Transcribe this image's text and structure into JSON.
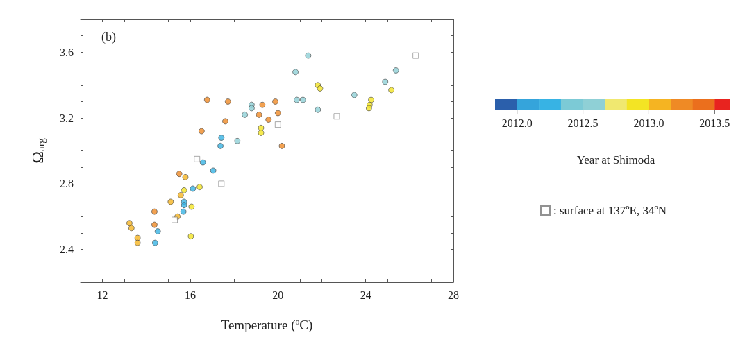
{
  "chart_data": {
    "type": "scatter",
    "xlabel": "Temperature (ºC)",
    "ylabel": "Ω$_{arg}$",
    "clabel": "Year at Shimoda",
    "annotations": [
      "(b)"
    ],
    "xlim": [
      11,
      28
    ],
    "ylim": [
      2.2,
      3.8
    ],
    "xticks": [
      {
        "value": 11,
        "label": null
      },
      12,
      {
        "value": 13,
        "label": null
      },
      {
        "value": 14,
        "label": null
      },
      {
        "value": 15,
        "label": null
      },
      16,
      {
        "value": 17,
        "label": null
      },
      {
        "value": 18,
        "label": null
      },
      {
        "value": 19,
        "label": null
      },
      20,
      {
        "value": 21,
        "label": null
      },
      {
        "value": 22,
        "label": null
      },
      {
        "value": 23,
        "label": null
      },
      24,
      {
        "value": 25,
        "label": null
      },
      {
        "value": 26,
        "label": null
      },
      {
        "value": 27,
        "label": null
      },
      28
    ],
    "yticks": [
      {
        "value": 2.2,
        "label": null
      },
      {
        "value": 2.3,
        "label": null
      },
      2.4,
      {
        "value": 2.5,
        "label": null
      },
      {
        "value": 2.6,
        "label": null
      },
      {
        "value": 2.7,
        "label": null
      },
      2.8,
      {
        "value": 2.9,
        "label": null
      },
      {
        "value": 3.0,
        "label": null
      },
      {
        "value": 3.1,
        "label": null
      },
      3.2,
      {
        "value": 3.3,
        "label": null
      },
      {
        "value": 3.4,
        "label": null
      },
      {
        "value": 3.5,
        "label": null
      },
      3.6,
      {
        "value": 3.7,
        "label": null
      },
      {
        "value": 3.8,
        "label": null
      }
    ],
    "clim": [
      2011.833,
      2013.667
    ],
    "cticks": [
      {
        "value": 2012,
        "label": "2012.0"
      },
      {
        "value": 2012.5,
        "label": "2012.5"
      },
      {
        "value": 2013,
        "label": "2013.0"
      },
      {
        "value": 2013.5,
        "label": "2013.5"
      }
    ],
    "grid": false,
    "legend": "right",
    "marker": "circle",
    "series": [
      {
        "x": [
          16.77,
          17.72,
          17.6,
          16.52,
          19.29,
          19.88,
          20.0,
          19.14,
          19.57,
          20.18,
          15.5,
          14.37,
          14.37
        ],
        "values": [
          3.31,
          3.3,
          3.18,
          3.12,
          3.28,
          3.3,
          3.23,
          3.22,
          3.19,
          3.03,
          2.86,
          2.63,
          2.55
        ],
        "cvalues": [
          2013.3,
          2013.3,
          2013.3,
          2013.3,
          2013.3,
          2013.3,
          2013.3,
          2013.3,
          2013.3,
          2013.3,
          2013.3,
          2013.3,
          2013.3
        ]
      },
      {
        "x": [
          15.78,
          15.57,
          15.11,
          15.42,
          13.23,
          13.32,
          13.6,
          13.6
        ],
        "values": [
          2.84,
          2.73,
          2.69,
          2.6,
          2.56,
          2.53,
          2.47,
          2.44
        ],
        "cvalues": [
          2013.1,
          2013.1,
          2013.1,
          2013.1,
          2013.1,
          2013.1,
          2013.1,
          2013.1
        ]
      },
      {
        "x": [
          19.23,
          19.23,
          21.82,
          21.92,
          24.25,
          24.18,
          24.15,
          25.17,
          15.72,
          16.43,
          16.06,
          16.03
        ],
        "values": [
          3.14,
          3.11,
          3.4,
          3.38,
          3.31,
          3.28,
          3.26,
          3.37,
          2.76,
          2.78,
          2.66,
          2.48
        ],
        "cvalues": [
          2012.9,
          2012.9,
          2012.9,
          2012.9,
          2012.9,
          2012.9,
          2012.9,
          2012.9,
          2012.9,
          2012.9,
          2012.9,
          2012.9
        ]
      },
      {
        "x": [
          18.8,
          18.8,
          18.49,
          18.15,
          20.8,
          21.38,
          20.86,
          21.14,
          21.82,
          23.48,
          24.89,
          25.38
        ],
        "values": [
          3.28,
          3.26,
          3.22,
          3.06,
          3.48,
          3.58,
          3.31,
          3.31,
          3.25,
          3.34,
          3.42,
          3.49
        ],
        "cvalues": [
          2012.55,
          2012.55,
          2012.55,
          2012.55,
          2012.55,
          2012.55,
          2012.55,
          2012.55,
          2012.55,
          2012.55,
          2012.55,
          2012.55
        ]
      },
      {
        "x": [
          17.42,
          17.38,
          16.58,
          17.05,
          16.12,
          15.72,
          15.72,
          15.69,
          14.52,
          14.4
        ],
        "values": [
          3.08,
          3.03,
          2.93,
          2.88,
          2.77,
          2.69,
          2.67,
          2.63,
          2.51,
          2.44
        ],
        "cvalues": [
          2012.25,
          2012.25,
          2012.25,
          2012.25,
          2012.25,
          2012.25,
          2012.25,
          2012.25,
          2012.25,
          2012.25
        ]
      },
      {
        "name": ": surface at 137ºE, 34ºN",
        "marker": "square",
        "color": "#ffffff",
        "x": [
          20.0,
          22.68,
          26.28,
          16.31,
          17.42,
          15.29
        ],
        "values": [
          3.16,
          3.21,
          3.58,
          2.95,
          2.8,
          2.58
        ]
      }
    ]
  }
}
